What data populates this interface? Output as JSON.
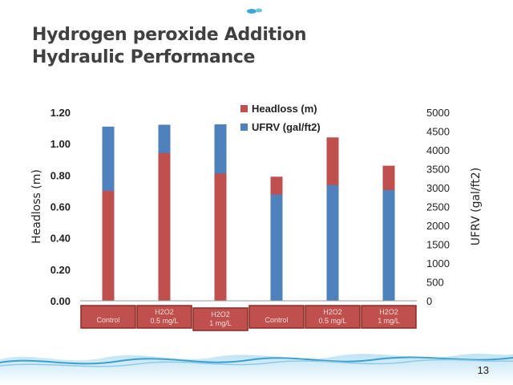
{
  "slide": {
    "title_line1": "Hydrogen peroxide Addition",
    "title_line2": "Hydraulic Performance",
    "page_number": "13"
  },
  "colors": {
    "headloss": "#c0504d",
    "ufrv": "#4f81bd",
    "label_box_fill": "#c0504d",
    "label_box_border": "#8b2a27"
  },
  "chart_data": {
    "type": "bar",
    "categories": [
      [
        "Control"
      ],
      [
        "H2O2",
        "0.5 mg/L"
      ],
      [
        "H2O2",
        "1 mg/L"
      ],
      [
        "Control"
      ],
      [
        "H2O2",
        "0.5 mg/L"
      ],
      [
        "H2O2",
        "1 mg/L"
      ]
    ],
    "series": [
      {
        "name": "Headloss (m)",
        "axis": "left",
        "values": [
          0.7,
          0.94,
          0.81,
          0.79,
          1.04,
          0.86
        ]
      },
      {
        "name": "UFRV (gal/ft2)",
        "axis": "right",
        "values": [
          4620,
          4670,
          4680,
          2820,
          3070,
          2940
        ]
      }
    ],
    "ylabel": "Headloss (m)",
    "ylabel_right": "UFRV (gal/ft2)",
    "ylim": [
      0,
      1.2
    ],
    "ylim_right": [
      0,
      5000
    ],
    "yticks": [
      "0.00",
      "0.20",
      "0.40",
      "0.60",
      "0.80",
      "1.00",
      "1.20"
    ],
    "yticks_right": [
      "0",
      "500",
      "1000",
      "1500",
      "2000",
      "2500",
      "3000",
      "3500",
      "4000",
      "4500",
      "5000"
    ],
    "legend_position": "top-right",
    "grid": false
  }
}
